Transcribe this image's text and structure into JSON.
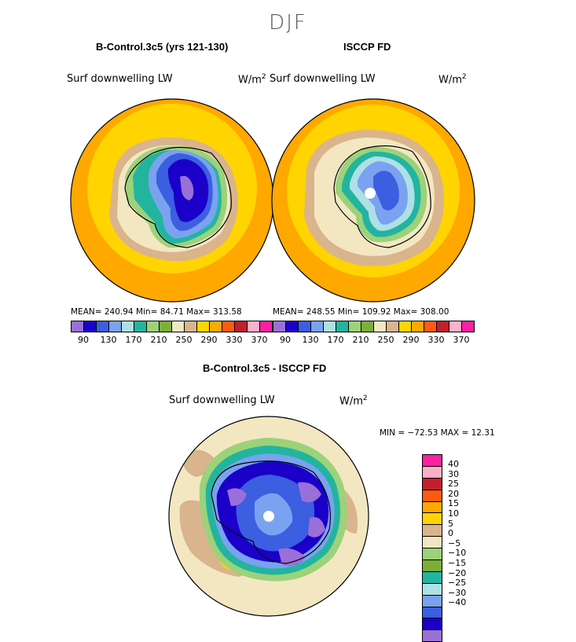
{
  "header": {
    "title": "DJF"
  },
  "panels": {
    "left": {
      "title": "B-Control.3c5 (yrs 121-130)",
      "variable": "Surf downwelling LW",
      "units": "W/m",
      "units_sup": "2",
      "stats": "MEAN= 240.94   Min=  84.71   Max= 313.58"
    },
    "right": {
      "title": "ISCCP FD",
      "variable": "Surf downwelling LW",
      "units": "W/m",
      "units_sup": "2",
      "stats": "MEAN= 248.55   Min= 109.92   Max= 308.00"
    },
    "diff": {
      "title": "B-Control.3c5 - ISCCP FD",
      "variable": "Surf downwelling LW",
      "units": "W/m",
      "units_sup": "2",
      "stats": "MIN = −72.53 MAX =  12.31"
    }
  },
  "colorbars": {
    "abs_colors": [
      "#9b6fd8",
      "#1a00c8",
      "#3c5ee0",
      "#7aa2f0",
      "#aee0e6",
      "#23b4a0",
      "#9bd27a",
      "#7cae3a",
      "#f3e7c2",
      "#d9b48c",
      "#ffd400",
      "#ffa800",
      "#ff5a10",
      "#c21f2b",
      "#ffb0c8",
      "#ff1fa0"
    ],
    "abs_ticks": [
      "90",
      "130",
      "170",
      "210",
      "250",
      "290",
      "330",
      "370"
    ],
    "diff_colors": [
      "#ff1fa0",
      "#ffb0c8",
      "#c21f2b",
      "#ff5a10",
      "#ffa800",
      "#ffd400",
      "#d9b48c",
      "#f3e7c2",
      "#9bd27a",
      "#7cae3a",
      "#23b4a0",
      "#aee0e6",
      "#7aa2f0",
      "#3c5ee0",
      "#1a00c8",
      "#9b6fd8"
    ],
    "diff_ticks": [
      "40",
      "30",
      "25",
      "20",
      "15",
      "10",
      "5",
      "0",
      "−5",
      "−10",
      "−15",
      "−20",
      "−25",
      "−30",
      "−40"
    ]
  },
  "chart_data": [
    {
      "type": "heatmap",
      "title": "B-Control.3c5 (yrs 121-130)",
      "subtitle": "Surf downwelling LW",
      "units": "W/m2",
      "projection": "south polar stereographic",
      "mean": 240.94,
      "min": 84.71,
      "max": 313.58,
      "levels": [
        90,
        130,
        170,
        210,
        250,
        290,
        330,
        370
      ]
    },
    {
      "type": "heatmap",
      "title": "ISCCP FD",
      "subtitle": "Surf downwelling LW",
      "units": "W/m2",
      "projection": "south polar stereographic",
      "mean": 248.55,
      "min": 109.92,
      "max": 308.0,
      "levels": [
        90,
        130,
        170,
        210,
        250,
        290,
        330,
        370
      ]
    },
    {
      "type": "heatmap",
      "title": "B-Control.3c5 - ISCCP FD",
      "subtitle": "Surf downwelling LW",
      "units": "W/m2",
      "projection": "south polar stereographic",
      "min": -72.53,
      "max": 12.31,
      "levels": [
        40,
        30,
        25,
        20,
        15,
        10,
        5,
        0,
        -5,
        -10,
        -15,
        -20,
        -25,
        -30,
        -40
      ]
    }
  ]
}
